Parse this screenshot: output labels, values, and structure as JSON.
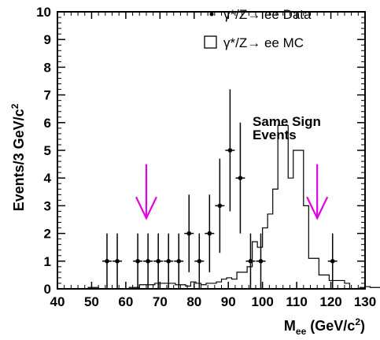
{
  "chart_data": {
    "type": "scatter",
    "title": "",
    "xlabel": {
      "main": "M",
      "sub": "ee",
      "rest": " (GeV/c",
      "sup": "2",
      "close": ")"
    },
    "ylabel": {
      "main": "Events/3 GeV/c",
      "sup": "2"
    },
    "xlim": [
      40,
      130
    ],
    "ylim": [
      0,
      10
    ],
    "x_ticks": [
      40,
      50,
      60,
      70,
      80,
      90,
      100,
      110,
      120,
      130
    ],
    "y_ticks": [
      0,
      1,
      2,
      3,
      4,
      5,
      6,
      7,
      8,
      9,
      10
    ],
    "legend": {
      "placement": "top-right",
      "entries": [
        {
          "marker": "point",
          "label": "γ*/Z→ ee Data"
        },
        {
          "marker": "box",
          "label": "γ*/Z→ ee  MC"
        }
      ]
    },
    "annotation": {
      "lines": [
        "Same Sign",
        "Events"
      ]
    },
    "arrows": {
      "x": [
        66,
        116
      ],
      "color": "#e000e0",
      "top": 4.5,
      "bottom": 2.55
    },
    "series": [
      {
        "name": "γ*/Z→ ee Data",
        "style": "points",
        "points": [
          {
            "x": 54.5,
            "y": 1,
            "err": 1.0
          },
          {
            "x": 57.5,
            "y": 1,
            "err": 1.0
          },
          {
            "x": 63.5,
            "y": 1,
            "err": 1.0
          },
          {
            "x": 66.5,
            "y": 1,
            "err": 1.0
          },
          {
            "x": 69.5,
            "y": 1,
            "err": 1.0
          },
          {
            "x": 72.5,
            "y": 1,
            "err": 1.0
          },
          {
            "x": 75.5,
            "y": 1,
            "err": 1.0
          },
          {
            "x": 78.5,
            "y": 2,
            "err": 1.4
          },
          {
            "x": 81.5,
            "y": 1,
            "err": 1.0
          },
          {
            "x": 84.5,
            "y": 2,
            "err": 1.4
          },
          {
            "x": 87.5,
            "y": 3,
            "err": 1.7
          },
          {
            "x": 90.5,
            "y": 5,
            "err": 2.2
          },
          {
            "x": 93.5,
            "y": 4,
            "err": 2.0
          },
          {
            "x": 96.5,
            "y": 1,
            "err": 1.0
          },
          {
            "x": 99.5,
            "y": 1,
            "err": 1.0
          },
          {
            "x": 120.5,
            "y": 1,
            "err": 1.0
          }
        ]
      },
      {
        "name": "γ*/Z→ ee  MC",
        "style": "histogram",
        "bin_width": 1.5,
        "bin_start": 40,
        "values": [
          0,
          0,
          0,
          0,
          0,
          0,
          0.05,
          0.05,
          0,
          0,
          0,
          0,
          0,
          0,
          0.05,
          0.05,
          0.15,
          0.15,
          0.15,
          0.2,
          0.2,
          0.2,
          0.2,
          0.15,
          0.15,
          0.1,
          0.25,
          0.2,
          0.15,
          0.2,
          0.2,
          0.25,
          0.35,
          0.4,
          0.35,
          0.6,
          0.6,
          0.8,
          1.7,
          1.5,
          2.2,
          2.7,
          3.6,
          5.9,
          5.9,
          4.0,
          5.0,
          5.0,
          3.0,
          1.1,
          1.1,
          0.5,
          0.5,
          0.3,
          0.3,
          0.3,
          0.2,
          0,
          0,
          0.05,
          0.08,
          0.05,
          0.05,
          0,
          0,
          0,
          0,
          0,
          0.05,
          0.05,
          0,
          0,
          0,
          0,
          0,
          0,
          0,
          0,
          0,
          0
        ]
      }
    ]
  }
}
